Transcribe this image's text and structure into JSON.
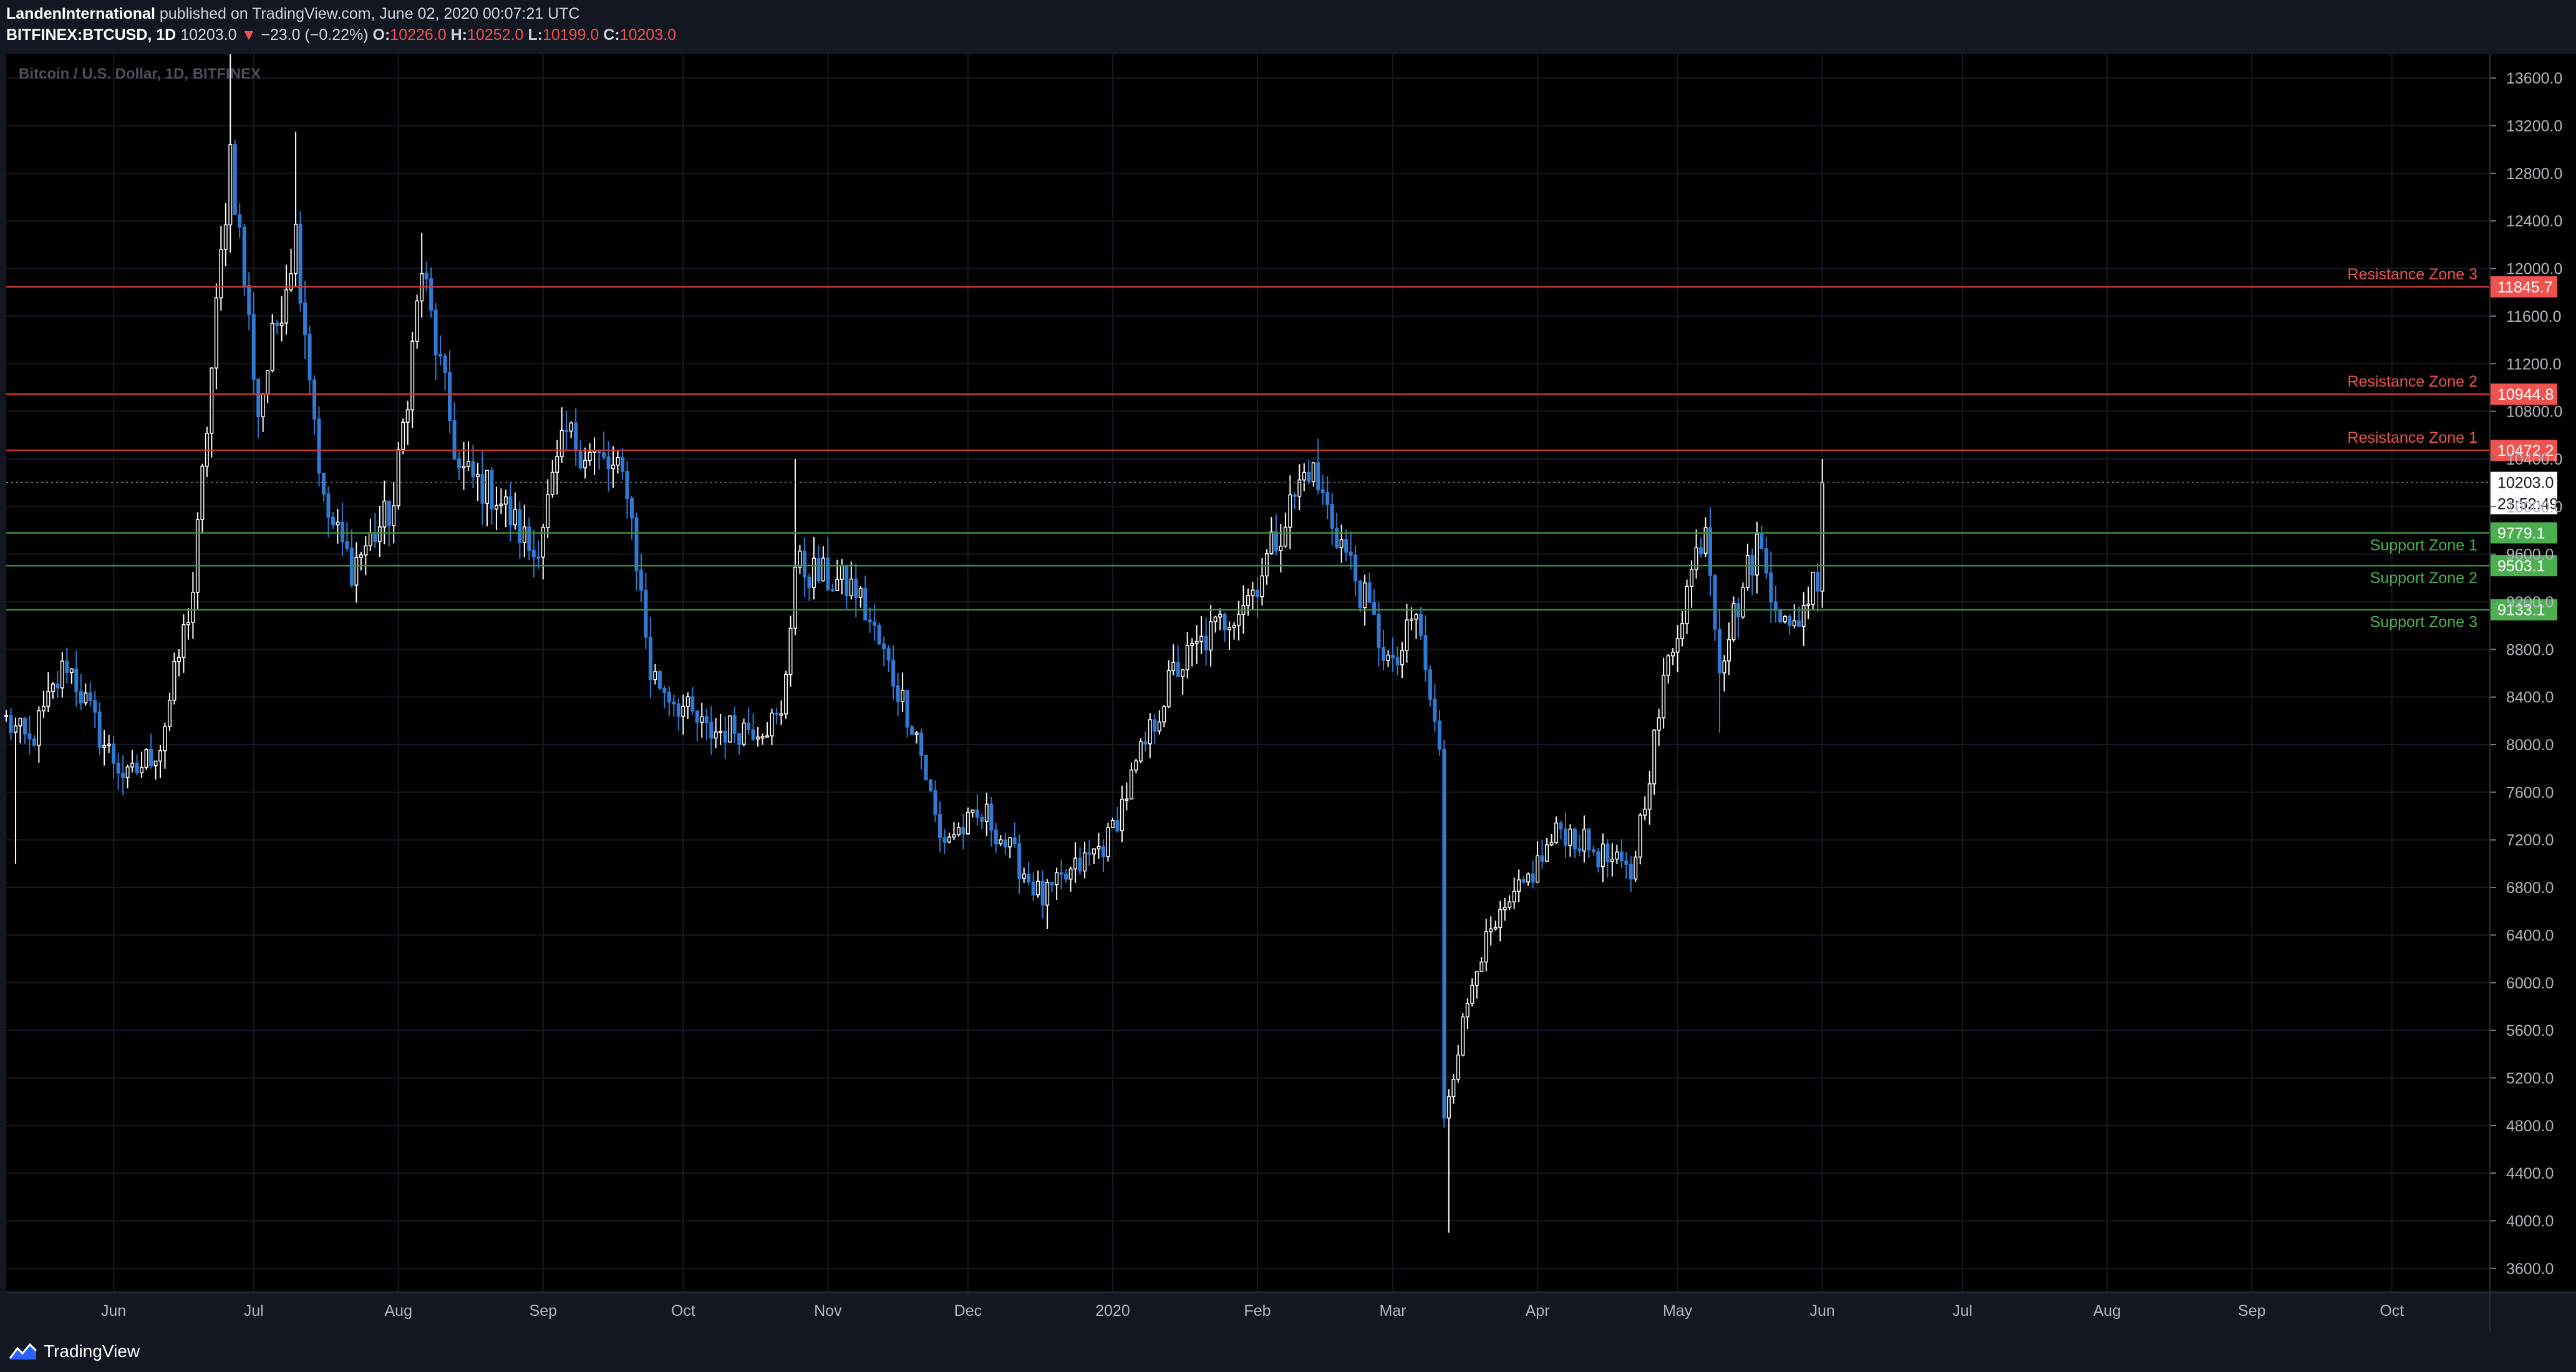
{
  "header": {
    "publisher": "LandenInternational",
    "published_text": "published on TradingView.com, June 02, 2020 00:07:21 UTC",
    "symbol": "BITFINEX:BTCUSD, 1D",
    "last": "10203.0",
    "change_arrow": "▼",
    "change": "−23.0 (−0.22%)",
    "o_label": "O:",
    "o": "10226.0",
    "h_label": "H:",
    "h": "10252.0",
    "l_label": "L:",
    "l": "10199.0",
    "c_label": "C:",
    "c": "10203.0"
  },
  "footer": {
    "brand": "TradingView",
    "brand_icon": "tradingview-logo-icon"
  },
  "colors": {
    "background": "#000000",
    "panel": "#131722",
    "candle": "#2e7bd6",
    "resistance": "#ef5350",
    "support": "#4caf50",
    "text_muted": "#5d606b"
  },
  "chart_data": {
    "type": "candlestick",
    "title": "Bitcoin / U.S. Dollar, 1D, BITFINEX",
    "ylim": [
      3400,
      13800
    ],
    "y_ticks": [
      3600,
      4000,
      4400,
      4800,
      5200,
      5600,
      6000,
      6400,
      6800,
      7200,
      7600,
      8000,
      8400,
      8800,
      9200,
      9600,
      10000,
      10400,
      10800,
      11200,
      11600,
      12000,
      12400,
      12800,
      13200,
      13600
    ],
    "y_tick_labels": [
      "3600.0",
      "4000.0",
      "4400.0",
      "4800.0",
      "5200.0",
      "5600.0",
      "6000.0",
      "6400.0",
      "6800.0",
      "7200.0",
      "7600.0",
      "8000.0",
      "8400.0",
      "8800.0",
      "9200.0",
      "9600.0",
      "10000.0",
      "10400.0",
      "10800.0",
      "11200.0",
      "11600.0",
      "12000.0",
      "12400.0",
      "12800.0",
      "13200.0",
      "13600.0"
    ],
    "x_start": "2019-05-09",
    "x_end": "2020-10-22",
    "x_ticks": [
      {
        "label": "Jun",
        "date": "2019-06-01"
      },
      {
        "label": "Jul",
        "date": "2019-07-01"
      },
      {
        "label": "Aug",
        "date": "2019-08-01"
      },
      {
        "label": "Sep",
        "date": "2019-09-01"
      },
      {
        "label": "Oct",
        "date": "2019-10-01"
      },
      {
        "label": "Nov",
        "date": "2019-11-01"
      },
      {
        "label": "Dec",
        "date": "2019-12-01"
      },
      {
        "label": "2020",
        "date": "2020-01-01"
      },
      {
        "label": "Feb",
        "date": "2020-02-01"
      },
      {
        "label": "Mar",
        "date": "2020-03-01"
      },
      {
        "label": "Apr",
        "date": "2020-04-01"
      },
      {
        "label": "May",
        "date": "2020-05-01"
      },
      {
        "label": "Jun",
        "date": "2020-06-01"
      },
      {
        "label": "Jul",
        "date": "2020-07-01"
      },
      {
        "label": "Aug",
        "date": "2020-08-01"
      },
      {
        "label": "Sep",
        "date": "2020-09-01"
      },
      {
        "label": "Oct",
        "date": "2020-10-01"
      }
    ],
    "key_prices": [
      {
        "date": "2019-05-09",
        "close": 8200
      },
      {
        "date": "2019-05-14",
        "close": 8000
      },
      {
        "date": "2019-05-22",
        "close": 8700
      },
      {
        "date": "2019-05-30",
        "close": 8000
      },
      {
        "date": "2019-06-04",
        "close": 7700
      },
      {
        "date": "2019-06-11",
        "close": 8000
      },
      {
        "date": "2019-06-18",
        "close": 9300
      },
      {
        "date": "2019-06-26",
        "close": 13000
      },
      {
        "date": "2019-07-02",
        "close": 10800
      },
      {
        "date": "2019-07-10",
        "close": 12300
      },
      {
        "date": "2019-07-16",
        "close": 10000
      },
      {
        "date": "2019-07-22",
        "close": 9500
      },
      {
        "date": "2019-07-31",
        "close": 10000
      },
      {
        "date": "2019-08-06",
        "close": 12000
      },
      {
        "date": "2019-08-14",
        "close": 10300
      },
      {
        "date": "2019-08-22",
        "close": 10100
      },
      {
        "date": "2019-08-30",
        "close": 9600
      },
      {
        "date": "2019-09-06",
        "close": 10600
      },
      {
        "date": "2019-09-19",
        "close": 10200
      },
      {
        "date": "2019-09-24",
        "close": 8600
      },
      {
        "date": "2019-10-06",
        "close": 8100
      },
      {
        "date": "2019-10-22",
        "close": 8200
      },
      {
        "date": "2019-10-25",
        "close": 9500
      },
      {
        "date": "2019-11-07",
        "close": 9300
      },
      {
        "date": "2019-11-20",
        "close": 8100
      },
      {
        "date": "2019-11-25",
        "close": 7200
      },
      {
        "date": "2019-12-05",
        "close": 7400
      },
      {
        "date": "2019-12-17",
        "close": 6700
      },
      {
        "date": "2019-12-31",
        "close": 7200
      },
      {
        "date": "2020-01-14",
        "close": 8600
      },
      {
        "date": "2020-01-31",
        "close": 9300
      },
      {
        "date": "2020-02-12",
        "close": 10350
      },
      {
        "date": "2020-02-20",
        "close": 9600
      },
      {
        "date": "2020-03-01",
        "close": 8600
      },
      {
        "date": "2020-03-06",
        "close": 9100
      },
      {
        "date": "2020-03-11",
        "close": 7900
      },
      {
        "date": "2020-03-12",
        "close": 4900
      },
      {
        "date": "2020-03-19",
        "close": 6200
      },
      {
        "date": "2020-04-06",
        "close": 7300
      },
      {
        "date": "2020-04-21",
        "close": 6900
      },
      {
        "date": "2020-04-29",
        "close": 8700
      },
      {
        "date": "2020-05-07",
        "close": 9900
      },
      {
        "date": "2020-05-10",
        "close": 8700
      },
      {
        "date": "2020-05-18",
        "close": 9700
      },
      {
        "date": "2020-05-25",
        "close": 8900
      },
      {
        "date": "2020-05-31",
        "close": 9450
      },
      {
        "date": "2020-06-01",
        "close": 10203
      }
    ],
    "spikes": [
      {
        "date": "2019-05-11",
        "low": 7000
      },
      {
        "date": "2019-06-26",
        "high": 13800
      },
      {
        "date": "2019-07-10",
        "high": 13150
      },
      {
        "date": "2019-08-06",
        "high": 12300
      },
      {
        "date": "2019-10-25",
        "high": 10400
      },
      {
        "date": "2019-12-18",
        "low": 6450
      },
      {
        "date": "2020-03-13",
        "low": 3900
      },
      {
        "date": "2020-05-10",
        "low": 8100
      },
      {
        "date": "2020-06-01",
        "high": 10400
      }
    ],
    "levels": [
      {
        "name": "Resistance Zone 3",
        "value": 11845.7,
        "label": "11845.7",
        "kind": "resistance"
      },
      {
        "name": "Resistance Zone 2",
        "value": 10944.8,
        "label": "10944.8",
        "kind": "resistance"
      },
      {
        "name": "Resistance Zone 1",
        "value": 10472.2,
        "label": "10472.2",
        "kind": "resistance"
      },
      {
        "name": "Support Zone 1",
        "value": 9779.1,
        "label": "9779.1",
        "kind": "support"
      },
      {
        "name": "Support Zone 2",
        "value": 9503.1,
        "label": "9503.1",
        "kind": "support"
      },
      {
        "name": "Support Zone 3",
        "value": 9133.1,
        "label": "9133.1",
        "kind": "support"
      }
    ],
    "last_price": {
      "value": 10203.0,
      "label": "10203.0",
      "countdown": "23:52:49"
    },
    "grid": true,
    "legend": "none"
  }
}
